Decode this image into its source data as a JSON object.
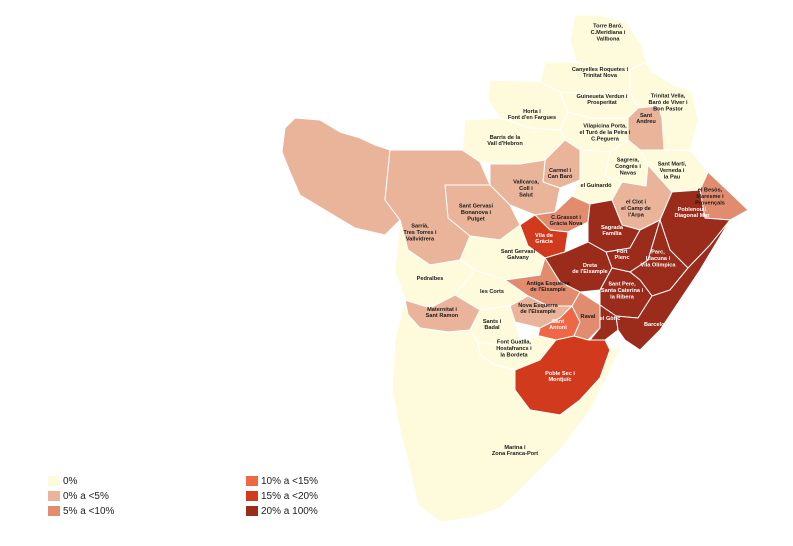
{
  "colors": {
    "c0": "#fdfbdc",
    "c1": "#e9b49a",
    "c2": "#e28c6f",
    "c3": "#ee6848",
    "c4": "#d23a1d",
    "c5": "#9b2b1b",
    "border": "#ffffff"
  },
  "legend": [
    {
      "label": "0%",
      "color_key": "c0"
    },
    {
      "label": "0% a  <5%",
      "color_key": "c1"
    },
    {
      "label": "5% a <10%",
      "color_key": "c2"
    },
    {
      "label": "10% a  <15%",
      "color_key": "c3"
    },
    {
      "label": "15% a  <20%",
      "color_key": "c4"
    },
    {
      "label": "20% a  100%",
      "color_key": "c5"
    }
  ],
  "districts": [
    {
      "id": "torre-baro",
      "name": [
        "Torre Baró,",
        "C.Meridiana i",
        "Vallbona"
      ],
      "class": "0%"
    },
    {
      "id": "canyelles",
      "name": [
        "Canyelles Roquetes i",
        "Trinitat Nova"
      ],
      "class": "0%"
    },
    {
      "id": "guineueta",
      "name": [
        "Guineueta  Verdun i",
        "Prosperitat"
      ],
      "class": "0%"
    },
    {
      "id": "trinitat-vella",
      "name": [
        "Trinitat Vella,",
        "Baró de Viver i",
        "Bon Pastor"
      ],
      "class": "0%"
    },
    {
      "id": "sant-andreu",
      "name": [
        "Sant",
        "Andreu"
      ],
      "class": "0% a  <5%"
    },
    {
      "id": "horta",
      "name": [
        "Horta i",
        "Font d'en Fargues"
      ],
      "class": "0%"
    },
    {
      "id": "vilapicina",
      "name": [
        "Vilapicina Porta,",
        "el Turó de la Peira i",
        "C.Peguera"
      ],
      "class": "0%"
    },
    {
      "id": "vall-hebron",
      "name": [
        "Barris de la",
        "Vall d'Hebron"
      ],
      "class": "0%"
    },
    {
      "id": "carmel",
      "name": [
        "Carmel i",
        "Can Baró"
      ],
      "class": "0% a  <5%"
    },
    {
      "id": "sagrera",
      "name": [
        "Sagrera,",
        "Congrés i",
        "Navas"
      ],
      "class": "0%"
    },
    {
      "id": "sant-marti",
      "name": [
        "Sant Martí,",
        "Verneda i",
        "la Pau"
      ],
      "class": "0%"
    },
    {
      "id": "guinardo",
      "name": [
        "el Guinardó"
      ],
      "class": "0%"
    },
    {
      "id": "vallcarca",
      "name": [
        "Vallcarca,",
        "Coll i",
        "Salut"
      ],
      "class": "0% a  <5%"
    },
    {
      "id": "besos",
      "name": [
        "el Besòs,",
        "Maresme i",
        "Provençals"
      ],
      "class": "5% a <10%"
    },
    {
      "id": "sant-gervasi-bonanova",
      "name": [
        "Sant Gervasi",
        "Bonanova i",
        "Putget"
      ],
      "class": "0% a  <5%"
    },
    {
      "id": "clot",
      "name": [
        "el Clot i",
        "el Camp de",
        "l'Arpa"
      ],
      "class": "0% a  <5%"
    },
    {
      "id": "poblenou",
      "name": [
        "Poblenou i",
        "Diagonal Mar"
      ],
      "class": "20% a  100%"
    },
    {
      "id": "sarria",
      "name": [
        "Sarrià,",
        "Tres Torres i",
        "Vallvidrera"
      ],
      "class": "0% a  <5%"
    },
    {
      "id": "c-grassot",
      "name": [
        "C.Grassot i",
        "Gràcia Nova"
      ],
      "class": "5% a <10%"
    },
    {
      "id": "sagrada-familia",
      "name": [
        "Sagrada",
        "Família"
      ],
      "class": "20% a  100%"
    },
    {
      "id": "vila-gracia",
      "name": [
        "Vila de",
        "Gràcia"
      ],
      "class": "15% a  <20%"
    },
    {
      "id": "sant-gervasi-galvany",
      "name": [
        "Sant Gervasi",
        "Galvany"
      ],
      "class": "0%"
    },
    {
      "id": "fort-pienc",
      "name": [
        "Fort",
        "Pienc"
      ],
      "class": "20% a  100%"
    },
    {
      "id": "parc-llacuna",
      "name": [
        "Parc,",
        "Llacuna i",
        "Vila Olímpica"
      ],
      "class": "20% a  100%"
    },
    {
      "id": "dreta-eixample",
      "name": [
        "Dreta",
        "de l'Eixample"
      ],
      "class": "20% a  100%"
    },
    {
      "id": "pedralbes",
      "name": [
        "Pedralbes"
      ],
      "class": "0%"
    },
    {
      "id": "antiga-esquerra",
      "name": [
        "Antiga Esquerra",
        "de l'Eixample"
      ],
      "class": "5% a <10%"
    },
    {
      "id": "sant-pere",
      "name": [
        "Sant Pere,",
        "Santa Caterina i",
        "la Ribera"
      ],
      "class": "20% a  100%"
    },
    {
      "id": "les-corts",
      "name": [
        "les Corts"
      ],
      "class": "0%"
    },
    {
      "id": "nova-esquerra",
      "name": [
        "Nova Esquerra",
        "de l'Eixample"
      ],
      "class": "0% a  <5%"
    },
    {
      "id": "maternitat",
      "name": [
        "Maternitat i",
        "Sant Ramon"
      ],
      "class": "0% a  <5%"
    },
    {
      "id": "sant-antoni",
      "name": [
        "Sant",
        "Antoni"
      ],
      "class": "10% a  <15%"
    },
    {
      "id": "raval",
      "name": [
        "Raval"
      ],
      "class": "5% a <10%"
    },
    {
      "id": "gotic",
      "name": [
        "el Gòtic"
      ],
      "class": "20% a  100%"
    },
    {
      "id": "barceloneta",
      "name": [
        "Barceloneta"
      ],
      "class": "20% a  100%"
    },
    {
      "id": "sants-badal",
      "name": [
        "Sants i",
        "Badal"
      ],
      "class": "0%"
    },
    {
      "id": "font-guatlla",
      "name": [
        "Font Guatlla,",
        "Hostafrancs i",
        "la Bordeta"
      ],
      "class": "0%"
    },
    {
      "id": "poble-sec",
      "name": [
        "Poble Sec i",
        "Montjuïc"
      ],
      "class": "15% a  <20%"
    },
    {
      "id": "marina",
      "name": [
        "Marina i",
        "Zona Franca-Port"
      ],
      "class": "0%"
    }
  ]
}
